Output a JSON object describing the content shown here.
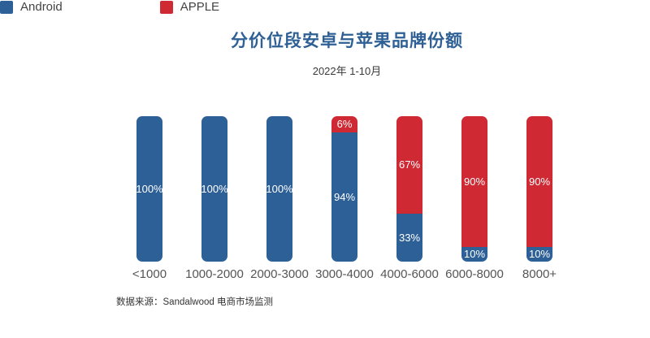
{
  "page": {
    "background": "#ffffff"
  },
  "header": {
    "title": "分价位段安卓与苹果品牌份额",
    "subtitle": "2022年 1-10月",
    "title_color": "#2E6096"
  },
  "chart_data": {
    "type": "bar",
    "stacked": true,
    "orientation": "vertical",
    "title": "分价位段安卓与苹果品牌份额",
    "subtitle": "2022年 1-10月",
    "categories": [
      "<1000",
      "1000-2000",
      "2000-3000",
      "3000-4000",
      "4000-6000",
      "6000-8000",
      "8000+"
    ],
    "series": [
      {
        "name": "Android",
        "color": "#2E6098",
        "values": [
          100,
          100,
          100,
          94,
          33,
          10,
          10
        ],
        "labels": [
          "100%",
          "100%",
          "100%",
          "94%",
          "33%",
          "10%",
          "10%"
        ]
      },
      {
        "name": "APPLE",
        "color": "#CF2A33",
        "values": [
          0,
          0,
          0,
          6,
          67,
          90,
          90
        ],
        "labels": [
          "",
          "",
          "",
          "6%",
          "67%",
          "90%",
          "90%"
        ]
      }
    ],
    "value_suffix": "%",
    "ylim": [
      0,
      100
    ],
    "grid": false,
    "legend_position": "top",
    "value_label_color": "#ffffff",
    "category_label_color": "#555555"
  },
  "footer": {
    "source": "数据来源：Sandalwood 电商市场监测"
  }
}
